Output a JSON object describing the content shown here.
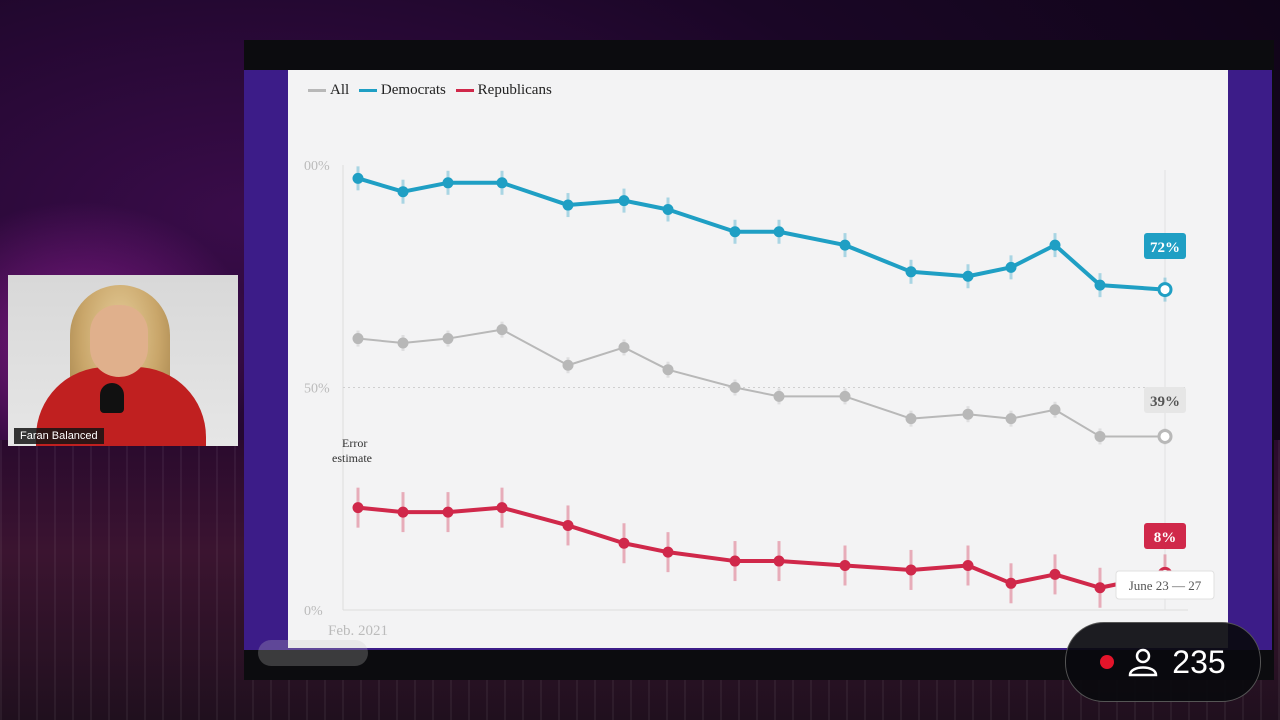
{
  "stream": {
    "presenter_name": "Faran Balanced",
    "viewer_count": "235"
  },
  "chart_data": {
    "type": "line",
    "legend": [
      "All",
      "Democrats",
      "Republicans"
    ],
    "y_ticks": [
      "0%",
      "50%",
      "00%"
    ],
    "x_start_label": "Feb. 2021",
    "annotation": "Error estimate",
    "end_labels": {
      "democrats": "72%",
      "all": "39%",
      "republicans": "8%"
    },
    "tooltip": "June 23 — 27",
    "ylim": [
      0,
      100
    ],
    "series": [
      {
        "name": "Democrats",
        "color": "#1f9fc4",
        "values": [
          97,
          94,
          96,
          96,
          91,
          92,
          90,
          85,
          85,
          82,
          76,
          75,
          77,
          82,
          73,
          72
        ]
      },
      {
        "name": "All",
        "color": "#b8b8b8",
        "values": [
          61,
          60,
          61,
          63,
          55,
          59,
          54,
          50,
          48,
          48,
          43,
          44,
          43,
          45,
          39,
          39
        ]
      },
      {
        "name": "Republicans",
        "color": "#d0284a",
        "values": [
          23,
          22,
          22,
          23,
          19,
          15,
          13,
          11,
          11,
          10,
          9,
          10,
          6,
          8,
          5,
          8
        ]
      }
    ]
  }
}
